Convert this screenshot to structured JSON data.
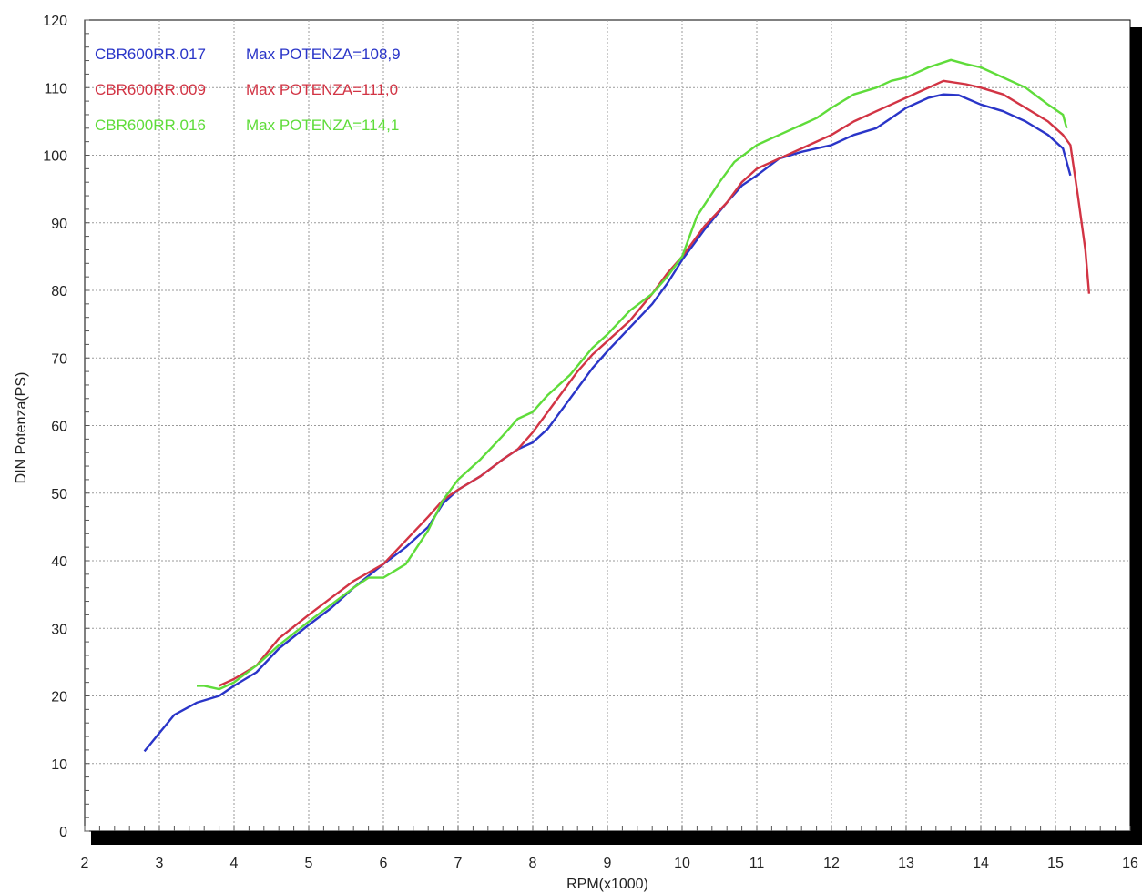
{
  "chart_data": {
    "type": "line",
    "xlabel": "RPM(x1000)",
    "ylabel": "DIN Potenza(PS)",
    "xlim": [
      2,
      16
    ],
    "ylim": [
      0,
      120
    ],
    "xticks": [
      "2",
      "3",
      "4",
      "5",
      "6",
      "7",
      "8",
      "9",
      "10",
      "11",
      "12",
      "13",
      "14",
      "15",
      "16"
    ],
    "yticks": [
      "0",
      "10",
      "20",
      "30",
      "40",
      "50",
      "60",
      "70",
      "80",
      "90",
      "100",
      "110",
      "120"
    ],
    "grid": true,
    "legend_position": "top-left",
    "series": [
      {
        "name": "CBR600RR.017",
        "annotation": "Max POTENZA=108,9",
        "color": "#2a35c8",
        "points": [
          [
            2.8,
            11.8
          ],
          [
            3.0,
            14.5
          ],
          [
            3.2,
            17.2
          ],
          [
            3.5,
            19.0
          ],
          [
            3.8,
            20.0
          ],
          [
            4.0,
            21.5
          ],
          [
            4.3,
            23.5
          ],
          [
            4.6,
            27.0
          ],
          [
            5.0,
            30.5
          ],
          [
            5.3,
            33.0
          ],
          [
            5.6,
            36.0
          ],
          [
            6.0,
            39.5
          ],
          [
            6.3,
            42.0
          ],
          [
            6.6,
            45.0
          ],
          [
            6.8,
            48.5
          ],
          [
            7.0,
            50.5
          ],
          [
            7.3,
            52.5
          ],
          [
            7.6,
            55.0
          ],
          [
            7.8,
            56.5
          ],
          [
            8.0,
            57.5
          ],
          [
            8.2,
            59.5
          ],
          [
            8.5,
            64.0
          ],
          [
            8.8,
            68.5
          ],
          [
            9.0,
            71.0
          ],
          [
            9.3,
            74.5
          ],
          [
            9.6,
            78.0
          ],
          [
            9.8,
            81.0
          ],
          [
            10.0,
            84.5
          ],
          [
            10.3,
            89.0
          ],
          [
            10.6,
            93.0
          ],
          [
            10.8,
            95.5
          ],
          [
            11.0,
            97.0
          ],
          [
            11.3,
            99.5
          ],
          [
            11.6,
            100.5
          ],
          [
            11.8,
            101.0
          ],
          [
            12.0,
            101.5
          ],
          [
            12.3,
            103.0
          ],
          [
            12.6,
            104.0
          ],
          [
            12.8,
            105.5
          ],
          [
            13.0,
            107.0
          ],
          [
            13.3,
            108.5
          ],
          [
            13.5,
            109.0
          ],
          [
            13.7,
            108.9
          ],
          [
            14.0,
            107.5
          ],
          [
            14.3,
            106.5
          ],
          [
            14.6,
            105.0
          ],
          [
            14.9,
            103.0
          ],
          [
            15.1,
            101.0
          ],
          [
            15.2,
            97.0
          ]
        ]
      },
      {
        "name": "CBR600RR.009",
        "annotation": "Max POTENZA=111,0",
        "color": "#d23444",
        "points": [
          [
            3.8,
            21.5
          ],
          [
            4.0,
            22.5
          ],
          [
            4.3,
            24.5
          ],
          [
            4.6,
            28.5
          ],
          [
            5.0,
            32.0
          ],
          [
            5.3,
            34.5
          ],
          [
            5.6,
            37.0
          ],
          [
            6.0,
            39.5
          ],
          [
            6.3,
            43.0
          ],
          [
            6.6,
            46.5
          ],
          [
            6.8,
            49.0
          ],
          [
            7.0,
            50.5
          ],
          [
            7.3,
            52.5
          ],
          [
            7.6,
            55.0
          ],
          [
            7.8,
            56.5
          ],
          [
            8.0,
            59.0
          ],
          [
            8.3,
            63.5
          ],
          [
            8.6,
            68.0
          ],
          [
            8.8,
            70.5
          ],
          [
            9.0,
            72.5
          ],
          [
            9.3,
            75.5
          ],
          [
            9.6,
            79.5
          ],
          [
            9.8,
            82.5
          ],
          [
            10.0,
            85.0
          ],
          [
            10.3,
            89.5
          ],
          [
            10.6,
            93.0
          ],
          [
            10.8,
            96.0
          ],
          [
            11.0,
            98.0
          ],
          [
            11.3,
            99.5
          ],
          [
            11.6,
            101.0
          ],
          [
            11.8,
            102.0
          ],
          [
            12.0,
            103.0
          ],
          [
            12.3,
            105.0
          ],
          [
            12.6,
            106.5
          ],
          [
            12.8,
            107.5
          ],
          [
            13.0,
            108.5
          ],
          [
            13.3,
            110.0
          ],
          [
            13.5,
            111.0
          ],
          [
            13.8,
            110.5
          ],
          [
            14.0,
            110.0
          ],
          [
            14.3,
            109.0
          ],
          [
            14.6,
            107.0
          ],
          [
            14.9,
            105.0
          ],
          [
            15.1,
            103.0
          ],
          [
            15.2,
            101.5
          ],
          [
            15.3,
            94.0
          ],
          [
            15.4,
            86.0
          ],
          [
            15.45,
            79.5
          ]
        ]
      },
      {
        "name": "CBR600RR.016",
        "annotation": "Max POTENZA=114,1",
        "color": "#5fdc3a",
        "points": [
          [
            3.5,
            21.5
          ],
          [
            3.6,
            21.5
          ],
          [
            3.8,
            21.0
          ],
          [
            4.0,
            22.0
          ],
          [
            4.3,
            24.5
          ],
          [
            4.6,
            27.5
          ],
          [
            5.0,
            31.0
          ],
          [
            5.3,
            33.5
          ],
          [
            5.6,
            36.0
          ],
          [
            5.8,
            37.5
          ],
          [
            6.0,
            37.5
          ],
          [
            6.3,
            39.5
          ],
          [
            6.6,
            44.5
          ],
          [
            6.8,
            49.0
          ],
          [
            7.0,
            52.0
          ],
          [
            7.3,
            55.0
          ],
          [
            7.6,
            58.5
          ],
          [
            7.8,
            61.0
          ],
          [
            8.0,
            62.0
          ],
          [
            8.2,
            64.5
          ],
          [
            8.5,
            67.5
          ],
          [
            8.8,
            71.5
          ],
          [
            9.0,
            73.5
          ],
          [
            9.3,
            77.0
          ],
          [
            9.6,
            79.5
          ],
          [
            9.8,
            82.0
          ],
          [
            10.0,
            85.0
          ],
          [
            10.2,
            91.0
          ],
          [
            10.5,
            96.0
          ],
          [
            10.7,
            99.0
          ],
          [
            11.0,
            101.5
          ],
          [
            11.3,
            103.0
          ],
          [
            11.6,
            104.5
          ],
          [
            11.8,
            105.5
          ],
          [
            12.0,
            107.0
          ],
          [
            12.3,
            109.0
          ],
          [
            12.6,
            110.0
          ],
          [
            12.8,
            111.0
          ],
          [
            13.0,
            111.5
          ],
          [
            13.3,
            113.0
          ],
          [
            13.6,
            114.1
          ],
          [
            13.8,
            113.5
          ],
          [
            14.0,
            113.0
          ],
          [
            14.3,
            111.5
          ],
          [
            14.6,
            110.0
          ],
          [
            14.9,
            107.5
          ],
          [
            15.1,
            106.0
          ],
          [
            15.15,
            104.0
          ]
        ]
      }
    ]
  }
}
